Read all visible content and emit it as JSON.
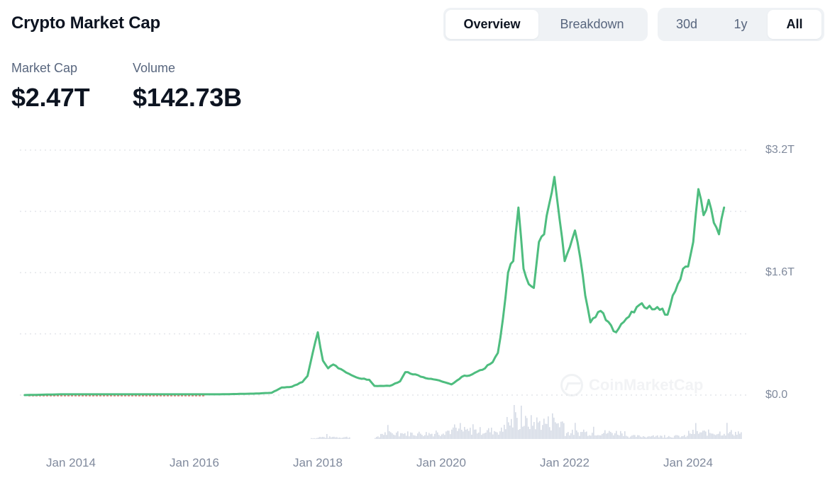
{
  "header": {
    "title": "Crypto Market Cap"
  },
  "view_toggle": {
    "options": [
      "Overview",
      "Breakdown"
    ],
    "selected": "Overview"
  },
  "range_toggle": {
    "options": [
      "30d",
      "1y",
      "All"
    ],
    "selected": "All"
  },
  "stats": {
    "market_cap": {
      "label": "Market Cap",
      "value": "$2.47T"
    },
    "volume": {
      "label": "Volume",
      "value": "$142.73B"
    }
  },
  "colors": {
    "line": "#4ebd7f",
    "volume_bars": "#d6dbe6",
    "gridline": "#e3e6ea",
    "axis_text": "#808a9d",
    "pre_data_dashes": "#e06d6d"
  },
  "watermark": "CoinMarketCap",
  "chart_data": {
    "type": "line",
    "title": "Crypto Market Cap",
    "xlabel": "",
    "ylabel": "",
    "y_tick_labels": [
      "$3.2T",
      "$1.6T",
      "$0.0"
    ],
    "x_tick_labels": [
      "Jan 2014",
      "Jan 2016",
      "Jan 2018",
      "Jan 2020",
      "Jan 2022",
      "Jan 2024"
    ],
    "ylim": [
      0,
      3.2
    ],
    "y_unit": "trillion USD",
    "grid": "horizontal dotted at 0, 0.8, 1.6, 2.4, 3.2",
    "legend": "none",
    "series": [
      {
        "name": "Market Cap",
        "x": [
          "2013-04",
          "2013-11",
          "2014-06",
          "2015-06",
          "2016-06",
          "2017-01",
          "2017-04",
          "2017-06",
          "2017-08",
          "2017-10",
          "2017-11",
          "2017-12",
          "2018-01",
          "2018-02",
          "2018-03",
          "2018-04",
          "2018-05",
          "2018-07",
          "2018-09",
          "2018-11",
          "2018-12",
          "2019-03",
          "2019-05",
          "2019-06",
          "2019-08",
          "2019-10",
          "2019-12",
          "2020-03",
          "2020-05",
          "2020-07",
          "2020-09",
          "2020-11",
          "2020-12",
          "2021-01",
          "2021-02",
          "2021-03",
          "2021-04",
          "2021-05",
          "2021-06",
          "2021-07",
          "2021-08",
          "2021-09",
          "2021-10",
          "2021-11",
          "2021-12",
          "2022-01",
          "2022-03",
          "2022-04",
          "2022-05",
          "2022-06",
          "2022-08",
          "2022-09",
          "2022-11",
          "2023-01",
          "2023-03",
          "2023-04",
          "2023-06",
          "2023-07",
          "2023-09",
          "2023-10",
          "2023-11",
          "2023-12",
          "2024-01",
          "2024-02",
          "2024-03",
          "2024-04",
          "2024-05",
          "2024-06",
          "2024-07",
          "2024-08"
        ],
        "values": [
          0.0,
          0.01,
          0.01,
          0.01,
          0.01,
          0.02,
          0.03,
          0.1,
          0.11,
          0.17,
          0.25,
          0.55,
          0.82,
          0.45,
          0.35,
          0.4,
          0.35,
          0.28,
          0.22,
          0.2,
          0.12,
          0.12,
          0.18,
          0.3,
          0.27,
          0.22,
          0.2,
          0.14,
          0.24,
          0.27,
          0.33,
          0.43,
          0.55,
          1.0,
          1.6,
          1.75,
          2.45,
          1.65,
          1.45,
          1.4,
          2.0,
          2.1,
          2.5,
          2.85,
          2.3,
          1.75,
          2.15,
          1.8,
          1.3,
          0.95,
          1.1,
          0.98,
          0.82,
          1.0,
          1.15,
          1.2,
          1.12,
          1.15,
          1.05,
          1.3,
          1.45,
          1.65,
          1.68,
          2.0,
          2.69,
          2.35,
          2.55,
          2.25,
          2.1,
          2.45
        ]
      },
      {
        "name": "Volume",
        "note": "Relative volume bars beneath price line, no axis labels; peaks around early 2021",
        "relative_values_by_year": {
          "2017": 0.05,
          "2018": 0.1,
          "2019": 0.3,
          "2020": 0.45,
          "2021": 0.9,
          "2022": 0.35,
          "2023": 0.15,
          "2024": 0.35
        }
      }
    ]
  }
}
